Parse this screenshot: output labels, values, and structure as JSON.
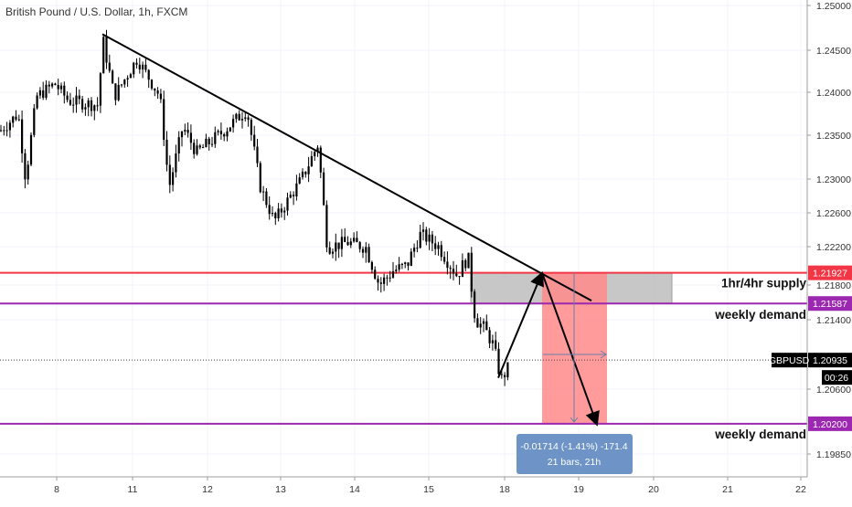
{
  "chart_data": {
    "type": "candlestick",
    "title": "British Pound / U.S. Dollar, 1h, FXCM",
    "symbol": "GBPUSD",
    "countdown": "00:26",
    "y_ticks": [
      "1.25000",
      "1.24500",
      "1.24000",
      "1.23500",
      "1.23000",
      "1.22600",
      "1.22200",
      "1.21800",
      "1.21400",
      "1.20600",
      "1.19850"
    ],
    "y_tick_values": [
      1.25,
      1.245,
      1.24,
      1.235,
      1.23,
      1.226,
      1.222,
      1.218,
      1.214,
      1.206,
      1.1985
    ],
    "x_ticks": [
      "8",
      "11",
      "12",
      "13",
      "14",
      "15",
      "18",
      "19",
      "20",
      "21",
      "22"
    ],
    "price_tags": [
      {
        "label": "1.21927",
        "value": 1.21927,
        "color": "#f23645"
      },
      {
        "label": "1.21587",
        "value": 1.21587,
        "color": "#9c27b0"
      },
      {
        "label": "1.20935",
        "value": 1.20935,
        "color": "#000000",
        "symbol": true
      },
      {
        "label": "1.20200",
        "value": 1.202,
        "color": "#9c27b0"
      }
    ],
    "zone_labels": [
      "1hr/4hr supply",
      "weekly demand",
      "weekly demand"
    ],
    "measure_label": {
      "line1": "-0.01714 (-1.41%) -171.4",
      "line2": "21 bars, 21h"
    },
    "colors": {
      "bull": "#26a69a",
      "bear": "#ef5350",
      "candle": "#000000",
      "supply": "#f23645",
      "demand": "#9c27b0",
      "supply_box": "#bdbdbd",
      "risk": "#ff8a8a",
      "label_box": "#6d93c7"
    }
  }
}
